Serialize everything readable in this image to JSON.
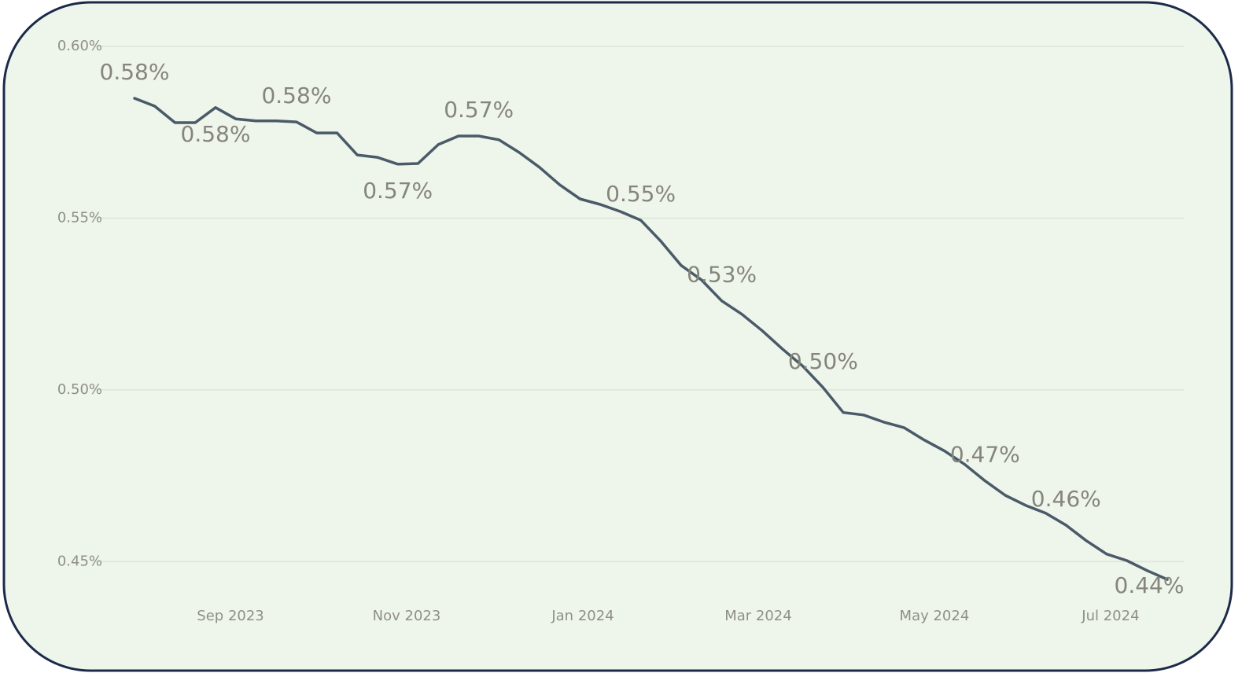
{
  "chart_data": {
    "type": "line",
    "values": [
      0.5849,
      0.5826,
      0.5778,
      0.5778,
      0.5822,
      0.5789,
      0.5783,
      0.5783,
      0.578,
      0.5748,
      0.5748,
      0.5684,
      0.5677,
      0.5657,
      0.5659,
      0.5714,
      0.5739,
      0.5739,
      0.5728,
      0.5691,
      0.5648,
      0.5597,
      0.5556,
      0.554,
      0.5519,
      0.5494,
      0.5432,
      0.5362,
      0.532,
      0.5259,
      0.522,
      0.5172,
      0.5119,
      0.5069,
      0.5007,
      0.4934,
      0.4927,
      0.4906,
      0.489,
      0.4854,
      0.4822,
      0.4783,
      0.4735,
      0.4693,
      0.4664,
      0.4641,
      0.4606,
      0.4561,
      0.4522,
      0.4503,
      0.4474,
      0.4448
    ],
    "value_labels": [
      "0.58%",
      null,
      null,
      null,
      "0.58%",
      null,
      null,
      null,
      "0.58%",
      null,
      null,
      null,
      null,
      "0.57%",
      null,
      null,
      null,
      "0.57%",
      null,
      null,
      null,
      null,
      null,
      null,
      null,
      "0.55%",
      null,
      null,
      null,
      "0.53%",
      null,
      null,
      null,
      null,
      "0.50%",
      null,
      null,
      null,
      null,
      null,
      null,
      null,
      "0.47%",
      null,
      null,
      null,
      "0.46%",
      null,
      null,
      null,
      null,
      "0.44%"
    ],
    "color": "#4a5a68",
    "xlim": [
      0,
      51
    ],
    "xticks": [
      {
        "value": 4.74,
        "label": "Sep 2023"
      },
      {
        "value": 13.44,
        "label": "Nov 2023"
      },
      {
        "value": 22.14,
        "label": "Jan 2024"
      },
      {
        "value": 30.8,
        "label": "Mar 2024"
      },
      {
        "value": 39.5,
        "label": "May 2024"
      },
      {
        "value": 48.2,
        "label": "Jul 2024"
      }
    ],
    "ylim": [
      0.44,
      0.6
    ],
    "yticks": [
      {
        "value": 0.45,
        "label": "0.45%"
      },
      {
        "value": 0.5,
        "label": "0.50%"
      },
      {
        "value": 0.55,
        "label": "0.55%"
      },
      {
        "value": 0.6,
        "label": "0.60%"
      }
    ],
    "grid": true
  }
}
